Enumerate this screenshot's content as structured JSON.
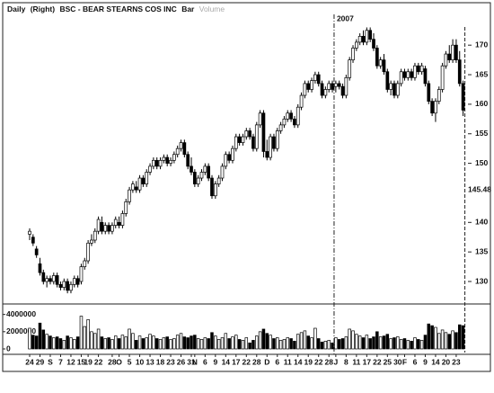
{
  "chart_data": [
    {
      "type": "candlestick",
      "title_parts": [
        "Daily",
        "(Right)",
        "BSC - BEAR STEARNS COS INC",
        "Bar"
      ],
      "volume_legend": "Volume",
      "annotation": {
        "text": "2007",
        "x": 89
      },
      "cursor_value": 145.48,
      "ylim": [
        126.5,
        174.9
      ],
      "yticks": [
        130,
        135,
        140,
        150,
        155,
        160,
        165,
        170
      ],
      "up_color": "#ffffff",
      "down_color": "#000000",
      "ohlc": [
        [
          138,
          139,
          137,
          138.5
        ],
        [
          137.5,
          138,
          136,
          136.5
        ],
        [
          135.5,
          136,
          134,
          134.5
        ],
        [
          133,
          134,
          131,
          131.5
        ],
        [
          131.5,
          132,
          129.5,
          130
        ],
        [
          130,
          131,
          129,
          130.5
        ],
        [
          130.5,
          131,
          129.5,
          130
        ],
        [
          130,
          131.5,
          129.5,
          131
        ],
        [
          131,
          131.5,
          129,
          129.5
        ],
        [
          129.5,
          130,
          128.5,
          129
        ],
        [
          129,
          130.5,
          128.5,
          130
        ],
        [
          130,
          130.5,
          128,
          128.5
        ],
        [
          128.5,
          130,
          128,
          129.5
        ],
        [
          129.5,
          131,
          129,
          130.5
        ],
        [
          130.5,
          131,
          129,
          129.5
        ],
        [
          130,
          133,
          129.5,
          132.5
        ],
        [
          132.5,
          134,
          132,
          133.5
        ],
        [
          133.5,
          137,
          133,
          136.5
        ],
        [
          136.5,
          138,
          136,
          137
        ],
        [
          137,
          139,
          136.5,
          138.5
        ],
        [
          138.5,
          141,
          138,
          140.5
        ],
        [
          140,
          141,
          138,
          138.5
        ],
        [
          138.5,
          140,
          138,
          139.5
        ],
        [
          139.5,
          140,
          138,
          138.5
        ],
        [
          138.5,
          140,
          138,
          139.5
        ],
        [
          139.5,
          141,
          139,
          140.5
        ],
        [
          140,
          141,
          139,
          139.5
        ],
        [
          139.5,
          142,
          139,
          141.5
        ],
        [
          141.5,
          144,
          141,
          143.5
        ],
        [
          143.5,
          146,
          143,
          145.5
        ],
        [
          145.5,
          147,
          145,
          146.5
        ],
        [
          146,
          147,
          145,
          145.5
        ],
        [
          145.5,
          148,
          145,
          147.5
        ],
        [
          147.5,
          148,
          146,
          146.5
        ],
        [
          146.5,
          149,
          146,
          148.5
        ],
        [
          148.5,
          150,
          148,
          149.5
        ],
        [
          149.5,
          151,
          149,
          150.5
        ],
        [
          150.5,
          151,
          149,
          149.5
        ],
        [
          149.5,
          151,
          149,
          150.5
        ],
        [
          150.5,
          151.5,
          150,
          151
        ],
        [
          151,
          151.5,
          149.5,
          150
        ],
        [
          150,
          151,
          149.5,
          150.5
        ],
        [
          150.5,
          152,
          150,
          151.5
        ],
        [
          151.5,
          153,
          151,
          152.5
        ],
        [
          152.5,
          154,
          152,
          153.5
        ],
        [
          153.5,
          154,
          151,
          151.5
        ],
        [
          151.5,
          152,
          149,
          149.5
        ],
        [
          149.5,
          151,
          148,
          148.5
        ],
        [
          148.5,
          149,
          146,
          146.5
        ],
        [
          146.5,
          148,
          146,
          147.5
        ],
        [
          147.5,
          149,
          147,
          148.5
        ],
        [
          148.5,
          150,
          148,
          149.5
        ],
        [
          149.5,
          150,
          147,
          147.5
        ],
        [
          147.5,
          148,
          144,
          144.5
        ],
        [
          144.5,
          147,
          144,
          146.5
        ],
        [
          146.5,
          148,
          146,
          147.5
        ],
        [
          147.5,
          150,
          147,
          149.5
        ],
        [
          149.5,
          152,
          149,
          151.5
        ],
        [
          151.5,
          152,
          150,
          150.5
        ],
        [
          150.5,
          153,
          150,
          152.5
        ],
        [
          152.5,
          155,
          152,
          154.5
        ],
        [
          154.5,
          155,
          153,
          153.5
        ],
        [
          153.5,
          155,
          153,
          154.5
        ],
        [
          154.5,
          156,
          154,
          155.5
        ],
        [
          155.5,
          156,
          154,
          154.5
        ],
        [
          154.5,
          155,
          152,
          152.5
        ],
        [
          152.5,
          157,
          152,
          156.5
        ],
        [
          156.5,
          159,
          156,
          158.5
        ],
        [
          158.5,
          159,
          151,
          152
        ],
        [
          152,
          154,
          150.5,
          151
        ],
        [
          151,
          155,
          150.5,
          154.5
        ],
        [
          154.5,
          155,
          152,
          152.5
        ],
        [
          152.5,
          156,
          152,
          155.5
        ],
        [
          155.5,
          157,
          155,
          156.5
        ],
        [
          156.5,
          158,
          156,
          157.5
        ],
        [
          157.5,
          159,
          157,
          158.5
        ],
        [
          158.5,
          159,
          157,
          157.5
        ],
        [
          157.5,
          158,
          156,
          156.5
        ],
        [
          156.5,
          160,
          156,
          159.5
        ],
        [
          159.5,
          162,
          159,
          161.5
        ],
        [
          161.5,
          164,
          161,
          163.5
        ],
        [
          163.5,
          164,
          162,
          162.5
        ],
        [
          162.5,
          164.5,
          162,
          164
        ],
        [
          164,
          165.5,
          163.5,
          165
        ],
        [
          165,
          165.5,
          163,
          163.5
        ],
        [
          163.5,
          164,
          161,
          161.5
        ],
        [
          161.5,
          163,
          161,
          162.5
        ],
        [
          162.5,
          164,
          162,
          163.5
        ],
        [
          163.5,
          164,
          162,
          162.5
        ],
        [
          163,
          164,
          162,
          163.5
        ],
        [
          163.5,
          164,
          162.5,
          163
        ],
        [
          163,
          163.5,
          161,
          161.5
        ],
        [
          161.5,
          165,
          161,
          164.5
        ],
        [
          164.5,
          168,
          164,
          167.5
        ],
        [
          167.5,
          170,
          167,
          169.5
        ],
        [
          169.5,
          171,
          169,
          170.5
        ],
        [
          170.5,
          172,
          170,
          171.5
        ],
        [
          171.5,
          172.5,
          170,
          170.5
        ],
        [
          170.5,
          173,
          170,
          172.5
        ],
        [
          172.5,
          173,
          170.5,
          171
        ],
        [
          171,
          172,
          169,
          169.5
        ],
        [
          169.5,
          170,
          166,
          166.5
        ],
        [
          166.5,
          168,
          166,
          167.5
        ],
        [
          167.5,
          168.5,
          165,
          165.5
        ],
        [
          165.5,
          166,
          162,
          162.5
        ],
        [
          162.5,
          164,
          161.5,
          163.5
        ],
        [
          163.5,
          164,
          161,
          161.5
        ],
        [
          161.5,
          164,
          161,
          163.5
        ],
        [
          163.5,
          166,
          163,
          165.5
        ],
        [
          165.5,
          166,
          164,
          164.5
        ],
        [
          164.5,
          166,
          164,
          165.5
        ],
        [
          165.5,
          166,
          164,
          164.5
        ],
        [
          164.5,
          167,
          164,
          166.5
        ],
        [
          166.5,
          167,
          165,
          165.5
        ],
        [
          165.5,
          167,
          165,
          166.5
        ],
        [
          166,
          166.5,
          163,
          163.5
        ],
        [
          163.5,
          164,
          160,
          160.5
        ],
        [
          160.5,
          161,
          158,
          158.5
        ],
        [
          158.5,
          161,
          157,
          160.5
        ],
        [
          160.5,
          163,
          160,
          162.5
        ],
        [
          162.5,
          167,
          162,
          166.5
        ],
        [
          166.5,
          169,
          166,
          168.5
        ],
        [
          168.5,
          170,
          167,
          167.5
        ],
        [
          167.5,
          171,
          167,
          170
        ],
        [
          170,
          171,
          167,
          167.5
        ],
        [
          167.5,
          169,
          163,
          163.5
        ],
        [
          163.5,
          164,
          158,
          159
        ]
      ]
    },
    {
      "type": "bar",
      "ylim": [
        0,
        4800000
      ],
      "yticks": [
        0,
        2000000,
        4000000
      ],
      "categories": [
        "24",
        null,
        null,
        "29",
        null,
        null,
        "S",
        null,
        null,
        "7",
        null,
        null,
        "12",
        null,
        null,
        "15",
        null,
        "19",
        null,
        null,
        "22",
        null,
        null,
        null,
        "28",
        null,
        "O",
        null,
        null,
        "5",
        null,
        null,
        "10",
        null,
        null,
        "13",
        null,
        null,
        "18",
        null,
        null,
        "23",
        null,
        null,
        "26",
        null,
        null,
        "31",
        "N",
        null,
        null,
        "6",
        null,
        null,
        "9",
        null,
        null,
        "14",
        null,
        null,
        "17",
        null,
        null,
        "22",
        null,
        null,
        "28",
        null,
        null,
        "D",
        null,
        null,
        "6",
        null,
        null,
        "11",
        null,
        null,
        "14",
        null,
        null,
        "19",
        null,
        null,
        "22",
        null,
        null,
        "28",
        null,
        "J",
        null,
        null,
        "8",
        null,
        null,
        "11",
        null,
        null,
        "17",
        null,
        null,
        "22",
        null,
        null,
        "25",
        null,
        null,
        "30",
        null,
        "F",
        null,
        null,
        "6",
        null,
        null,
        "9",
        null,
        null,
        "14",
        null,
        null,
        "20",
        null,
        null,
        "23",
        null,
        null
      ],
      "values": [
        2400000,
        1600000,
        1500000,
        3000000,
        2200000,
        1700000,
        1500000,
        1300000,
        1400000,
        1200000,
        1000000,
        1500000,
        1300000,
        1100000,
        1400000,
        3800000,
        2600000,
        3400000,
        2000000,
        1800000,
        2300000,
        1400000,
        1200000,
        1300000,
        1100000,
        1500000,
        1200000,
        1600000,
        1400000,
        2300000,
        1800000,
        1000000,
        1500000,
        1200000,
        1300000,
        1700000,
        1500000,
        1200000,
        1100000,
        1300000,
        1400000,
        1100000,
        1200000,
        1600000,
        1800000,
        1400000,
        1300000,
        1500000,
        1600000,
        1200000,
        1100000,
        1300000,
        1200000,
        1900000,
        1500000,
        1100000,
        1300000,
        1800000,
        1200000,
        1400000,
        1600000,
        1100000,
        1000000,
        1300000,
        700000,
        1000000,
        1500000,
        2000000,
        2300000,
        1800000,
        1600000,
        1200000,
        1300000,
        1000000,
        1100000,
        1300000,
        1200000,
        900000,
        1700000,
        1900000,
        2100000,
        1500000,
        1300000,
        2400000,
        1200000,
        800000,
        900000,
        1000000,
        700000,
        1300000,
        1100000,
        1200000,
        1400000,
        2300000,
        2100000,
        1700000,
        1500000,
        1300000,
        1600000,
        1200000,
        1400000,
        2000000,
        1400000,
        1500000,
        1700000,
        1200000,
        1300000,
        1400000,
        1100000,
        1200000,
        1000000,
        900000,
        1300000,
        1100000,
        1000000,
        1600000,
        2900000,
        2700000,
        2500000,
        1800000,
        2200000,
        1900000,
        1700000,
        2100000,
        1900000,
        2800000,
        2700000
      ]
    }
  ]
}
